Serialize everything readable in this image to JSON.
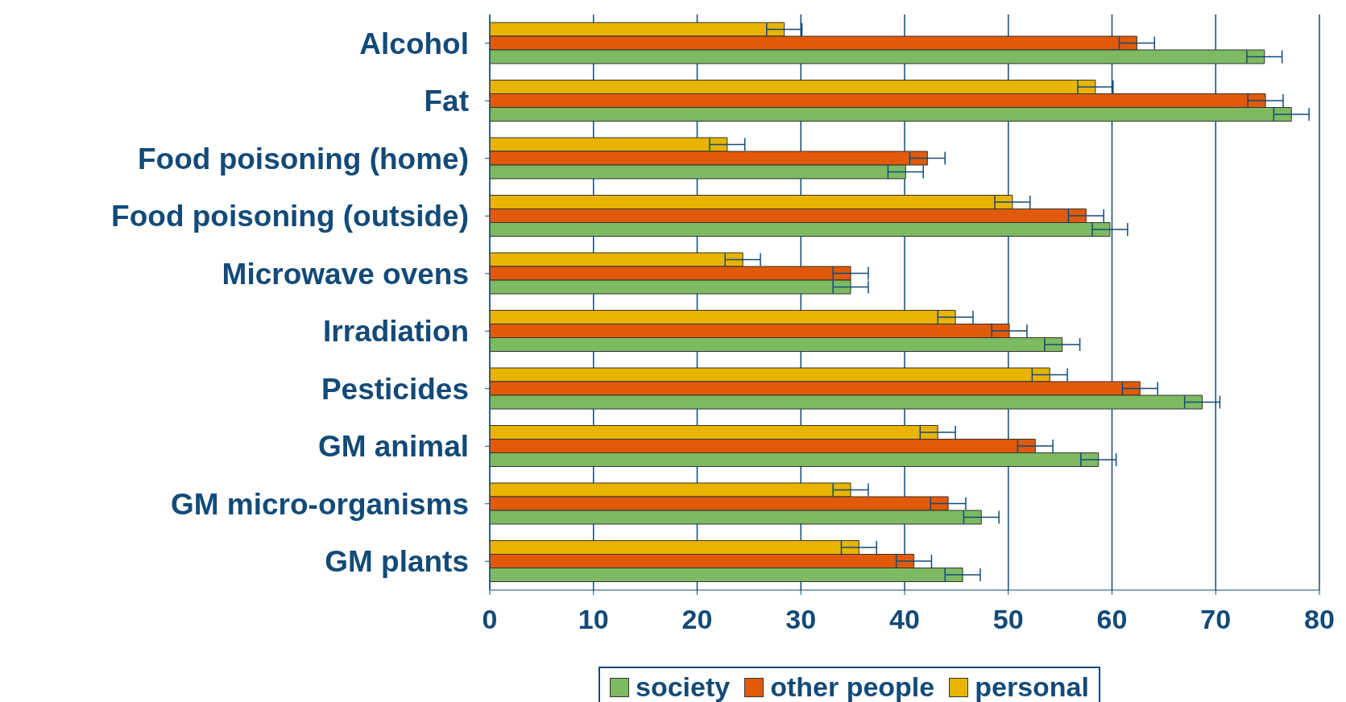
{
  "chart_data": {
    "type": "bar",
    "orientation": "horizontal",
    "categories": [
      "Alcohol",
      "Fat",
      "Food poisoning (home)",
      "Food poisoning (outside)",
      "Microwave ovens",
      "Irradiation",
      "Pesticides",
      "GM animal",
      "GM micro-organisms",
      "GM plants"
    ],
    "series": [
      {
        "name": "society",
        "color": "#7dba62",
        "values": [
          74.7,
          77.3,
          40.1,
          59.8,
          34.8,
          55.2,
          68.7,
          58.7,
          47.4,
          45.6
        ],
        "errors": [
          1.7,
          1.7,
          1.7,
          1.7,
          1.7,
          1.7,
          1.7,
          1.7,
          1.7,
          1.7
        ]
      },
      {
        "name": "other people",
        "color": "#e05a0a",
        "values": [
          62.4,
          74.8,
          42.2,
          57.5,
          34.8,
          50.1,
          62.7,
          52.6,
          44.2,
          40.9
        ],
        "errors": [
          1.7,
          1.7,
          1.7,
          1.7,
          1.7,
          1.7,
          1.7,
          1.7,
          1.7,
          1.7
        ]
      },
      {
        "name": "personal",
        "color": "#e8b400",
        "values": [
          28.4,
          58.4,
          22.9,
          50.4,
          24.4,
          44.9,
          54.0,
          43.2,
          34.8,
          35.6
        ],
        "errors": [
          1.7,
          1.7,
          1.7,
          1.7,
          1.7,
          1.7,
          1.7,
          1.7,
          1.7,
          1.7
        ]
      }
    ],
    "xlim": [
      0,
      80
    ],
    "xticks": [
      0,
      10,
      20,
      30,
      40,
      50,
      60,
      70,
      80
    ],
    "grid": "x",
    "legend": "bottom"
  }
}
